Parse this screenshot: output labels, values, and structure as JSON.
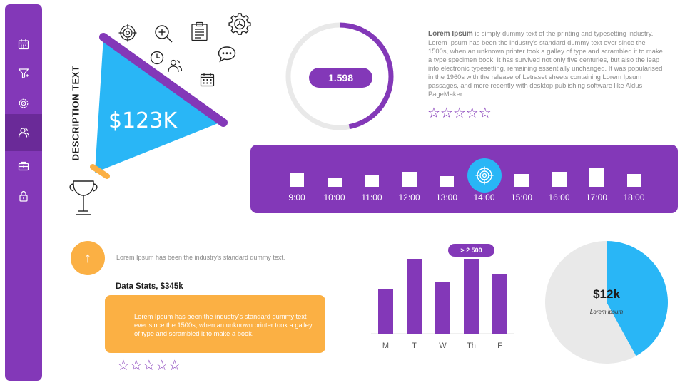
{
  "sidebar": {
    "items": [
      {
        "icon": "calendar-icon"
      },
      {
        "icon": "filter-icon"
      },
      {
        "icon": "settings-icon"
      },
      {
        "icon": "users-icon"
      },
      {
        "icon": "briefcase-icon"
      },
      {
        "icon": "lock-icon"
      }
    ],
    "active_index": 3
  },
  "megaphone": {
    "vertical_label": "DESCRIPTION TEXT",
    "value": "$123K",
    "icons": [
      "target-icon",
      "zoom-in-icon",
      "clipboard-icon",
      "gear-icon",
      "clock-icon",
      "users-icon",
      "chat-icon",
      "calendar-icon",
      "trophy-icon"
    ]
  },
  "ring": {
    "value": "1.598",
    "fraction": 0.47
  },
  "text_block": {
    "lead": "Lorem Ipsum",
    "body": " is simply dummy text of the printing and typesetting industry. Lorem Ipsum has been the industry's standard dummy text ever since the 1500s, when an unknown printer took a galley of type and scrambled it to make a type specimen book. It has survived not only five centuries, but also the leap into electronic typesetting, remaining essentially unchanged. It was popularised in the 1960s with the release of Letraset sheets containing Lorem Ipsum passages, and more recently with desktop publishing software like Aldus PageMaker.",
    "stars": "☆☆☆☆☆"
  },
  "timeline": {
    "slots": [
      {
        "time": "9:00",
        "level": 0.55
      },
      {
        "time": "10:00",
        "level": 0.32
      },
      {
        "time": "11:00",
        "level": 0.45
      },
      {
        "time": "12:00",
        "level": 0.62
      },
      {
        "time": "13:00",
        "level": 0.4
      },
      {
        "time": "14:00",
        "level": null,
        "icon": "target-icon"
      },
      {
        "time": "15:00",
        "level": 0.5
      },
      {
        "time": "16:00",
        "level": 0.62
      },
      {
        "time": "17:00",
        "level": 0.78
      },
      {
        "time": "18:00",
        "level": 0.5
      }
    ]
  },
  "stats": {
    "caption": "Lorem Ipsum has been the industry's standard dummy text.",
    "title": "Data Stats, $345k",
    "box_text": "Lorem Ipsum has been the industry's standard dummy text ever since the 1500s, when an unknown printer took a galley of type and scrambled it to make a book.",
    "stars": "☆☆☆☆☆"
  },
  "weekly": {
    "badge": "> 2 500"
  },
  "pie": {
    "value": "$12k",
    "label": "Lorem ipsum"
  },
  "colors": {
    "purple": "#8338b8",
    "blue": "#29b6f6",
    "orange": "#fbb044",
    "grey": "#e9e9e9"
  },
  "chart_data": [
    {
      "type": "bar",
      "categories": [
        "M",
        "T",
        "W",
        "Th",
        "F"
      ],
      "values": [
        63,
        105,
        73,
        105,
        84
      ],
      "title": "",
      "xlabel": "",
      "ylabel": ""
    },
    {
      "type": "pie",
      "slices": [
        {
          "name": "",
          "value": 42,
          "color": "#29b6f6"
        },
        {
          "name": "",
          "value": 58,
          "color": "#e9e9e9"
        }
      ]
    }
  ]
}
